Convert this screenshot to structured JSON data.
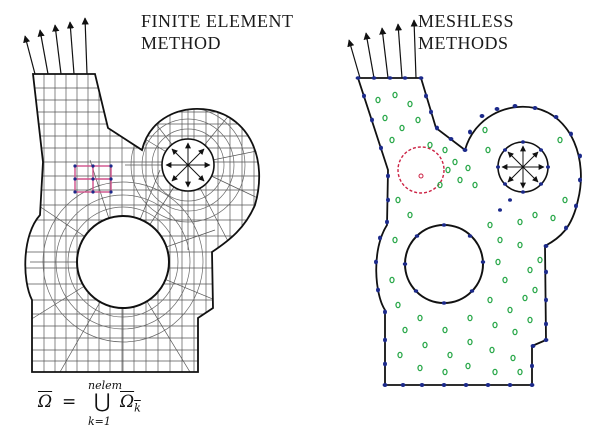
{
  "fem": {
    "title_line1": "FINITE ELEMENT",
    "title_line2": "METHOD"
  },
  "meshless": {
    "title_line1": "MESHLESS",
    "title_line2": "METHODS"
  },
  "formula": {
    "lhs": "Ω",
    "equals": "=",
    "union_upper": "nelem",
    "union_symbol": "⋃",
    "union_lower": "k=1",
    "rhs": "Ω",
    "rhs_sub": "k"
  },
  "colors": {
    "outline": "#1a1a1a",
    "mesh": "#333333",
    "highlight": "#d0508a",
    "nodes_boundary": "#1c2a8a",
    "nodes_interior": "#2aa84a",
    "support_circle": "#cc2244"
  }
}
